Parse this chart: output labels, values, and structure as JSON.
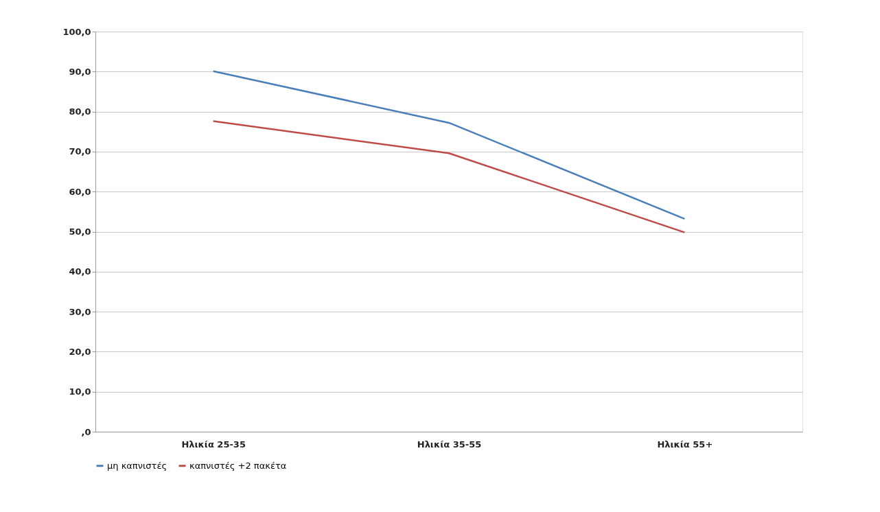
{
  "chart_data": {
    "type": "line",
    "categories": [
      "Ηλικία 25-35",
      "Ηλικία 35-55",
      "Ηλικία 55+"
    ],
    "series": [
      {
        "name": "μη καπνιστές",
        "color": "#4a7ebb",
        "values": [
          90.1,
          77.2,
          53.2
        ]
      },
      {
        "name": "καπνιστές +2 πακέτα",
        "color": "#be4b48",
        "values": [
          77.6,
          69.6,
          49.8
        ]
      }
    ],
    "ylim": [
      0,
      100
    ],
    "yticks": [
      {
        "value": 0,
        "label": ",0"
      },
      {
        "value": 10,
        "label": "10,0"
      },
      {
        "value": 20,
        "label": "20,0"
      },
      {
        "value": 30,
        "label": "30,0"
      },
      {
        "value": 40,
        "label": "40,0"
      },
      {
        "value": 50,
        "label": "50,0"
      },
      {
        "value": 60,
        "label": "60,0"
      },
      {
        "value": 70,
        "label": "70,0"
      },
      {
        "value": 80,
        "label": "80,0"
      },
      {
        "value": 90,
        "label": "90,0"
      },
      {
        "value": 100,
        "label": "100,0"
      }
    ],
    "grid": "y",
    "legend": "bottom",
    "marker": "none",
    "line_style": "solid"
  }
}
